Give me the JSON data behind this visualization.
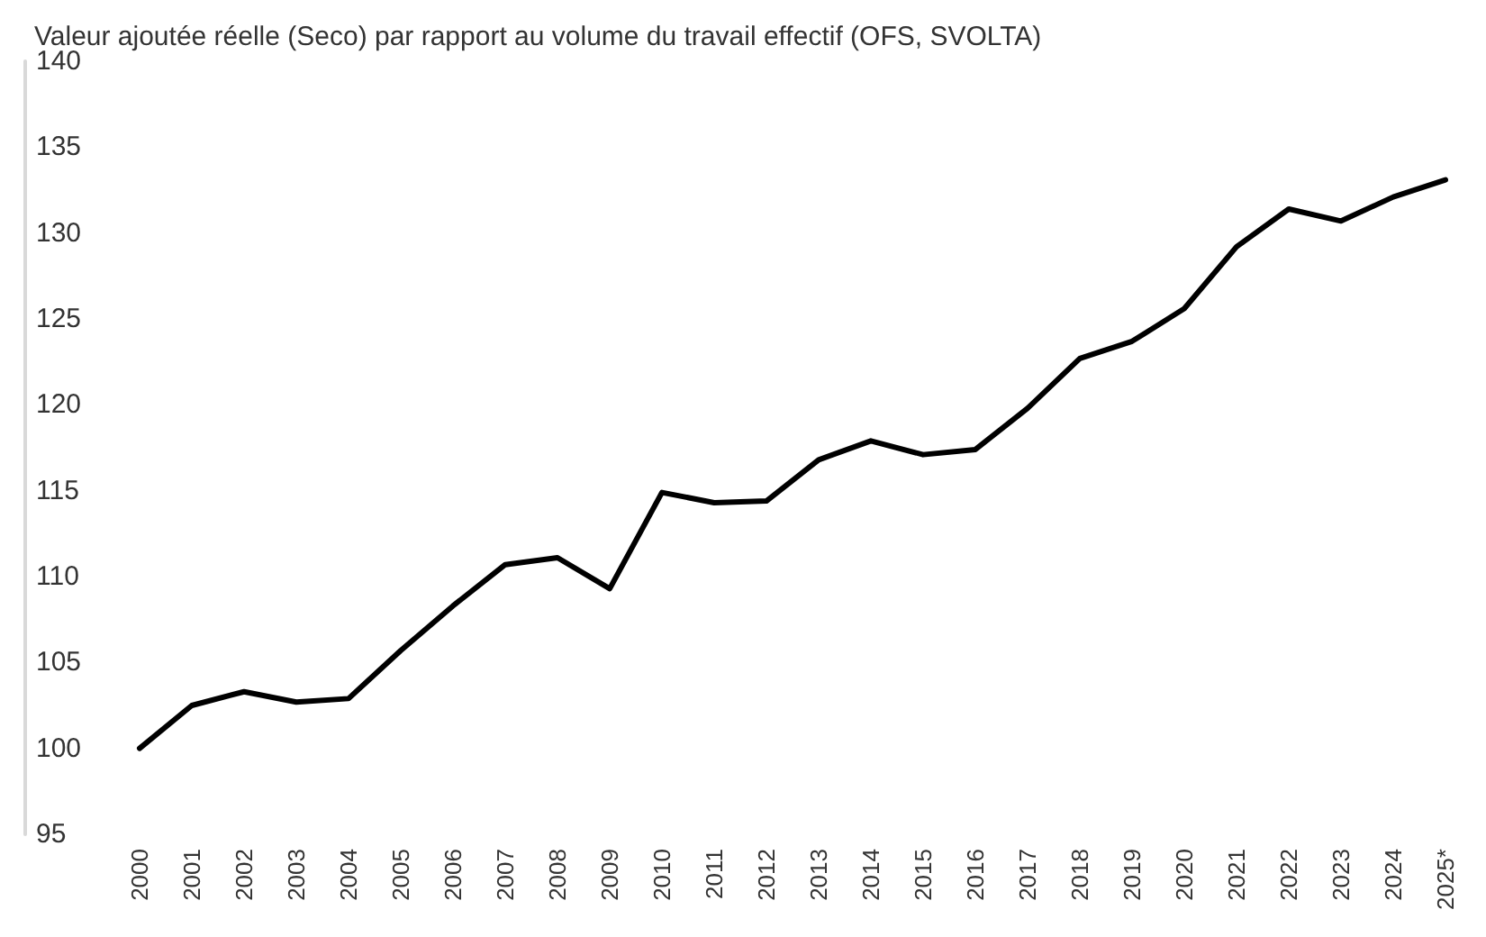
{
  "chart_data": {
    "type": "line",
    "title": "Valeur ajoutée réelle (Seco) par rapport au volume du travail effectif (OFS, SVOLTA)",
    "categories": [
      "2000",
      "2001",
      "2002",
      "2003",
      "2004",
      "2005",
      "2006",
      "2007",
      "2008",
      "2009",
      "2010",
      "2011",
      "2012",
      "2013",
      "2014",
      "2015",
      "2016",
      "2017",
      "2018",
      "2019",
      "2020",
      "2021",
      "2022",
      "2023",
      "2024",
      "2025*"
    ],
    "series": [
      {
        "color": "#000000",
        "values": [
          100,
          102.5,
          103.3,
          102.7,
          102.9,
          105.7,
          108.3,
          110.7,
          111.1,
          109.3,
          114.9,
          114.3,
          114.4,
          116.8,
          117.9,
          117.1,
          117.4,
          119.8,
          122.7,
          123.7,
          125.6,
          129.2,
          131.4,
          130.7,
          132.1,
          133.1
        ]
      }
    ],
    "ylim": [
      95,
      140
    ],
    "yticks": [
      95,
      100,
      105,
      110,
      115,
      120,
      125,
      130,
      135,
      140
    ],
    "grid": false,
    "marker": "none",
    "line_style": "solid"
  }
}
